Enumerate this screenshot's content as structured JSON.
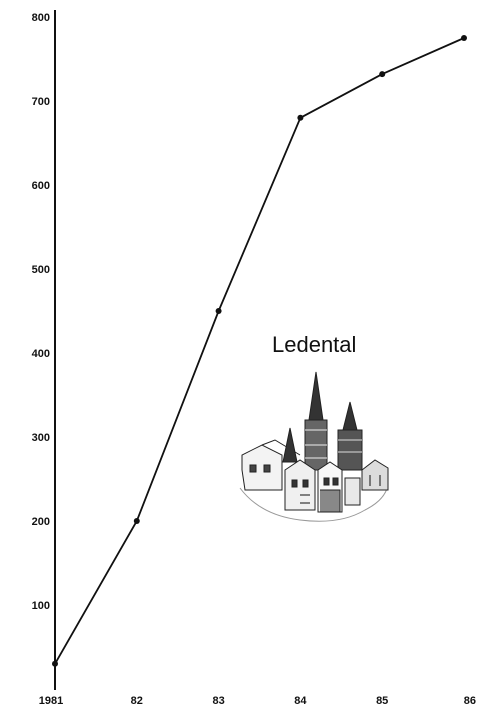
{
  "chart_data": {
    "type": "line",
    "x_tick_labels": [
      "1981",
      "82",
      "83",
      "84",
      "85",
      "86"
    ],
    "y_tick_labels": [
      "100",
      "200",
      "300",
      "400",
      "500",
      "600",
      "700",
      "800"
    ],
    "y_ticks": [
      100,
      200,
      300,
      400,
      500,
      600,
      700,
      800
    ],
    "ylim": [
      0,
      800
    ],
    "x": [
      1981,
      1982,
      1983,
      1984,
      1985,
      1986
    ],
    "series": [
      {
        "values": [
          30,
          200,
          450,
          680,
          732,
          775
        ]
      }
    ],
    "annotation": "Ledental",
    "grid": false,
    "legend": "none"
  },
  "illustration": {
    "icon": "church-town-illustration"
  }
}
